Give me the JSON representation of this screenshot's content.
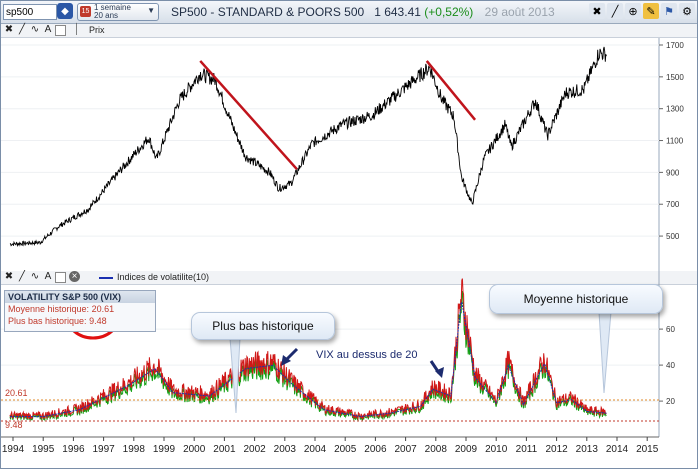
{
  "toolbar": {
    "symbol_value": "sp500",
    "period_line1": "1 semaine",
    "period_line2": "20 ans",
    "period_icon": "15",
    "title": "SP500 - STANDARD & POORS 500",
    "price": "1 643.41",
    "change": "(+0,52%)",
    "date": "29 août 2013",
    "right_icons": [
      "crosshair-icon",
      "line-tool-icon",
      "zoom-icon",
      "pencil-icon",
      "flag-icon",
      "settings-icon"
    ]
  },
  "main_panel": {
    "legend": "Prix",
    "y_ticks": [
      "1700",
      "1500",
      "1300",
      "1100",
      "900",
      "700",
      "500"
    ]
  },
  "vol_panel": {
    "legend": "Indices de volatilite(10)",
    "legend_color": "#1a2fb0",
    "y_ticks": [
      "60",
      "40",
      "20"
    ],
    "info": {
      "title": "VOLATILITY S&P 500 (VIX)",
      "mean_label": "Moyenne historique:",
      "mean_value": "20.61",
      "low_label": "Plus bas historique:",
      "low_value": "9.48"
    },
    "level_mean": "20.61",
    "level_low": "9.48"
  },
  "x_axis": [
    "1994",
    "1995",
    "1996",
    "1997",
    "1998",
    "1999",
    "2000",
    "2001",
    "2002",
    "2003",
    "2004",
    "2005",
    "2006",
    "2007",
    "2008",
    "2009",
    "2010",
    "2011",
    "2012",
    "2013",
    "2014",
    "2015"
  ],
  "annotations": {
    "low_callout": "Plus bas historique",
    "mean_callout": "Moyenne historique",
    "vix_note": "VIX au dessus de 20"
  },
  "colors": {
    "price_line": "#000000",
    "trend_line": "#c0141c",
    "vix_red": "#d01818",
    "vix_green": "#14a014",
    "vix_blue": "#1a2fb0",
    "mean_line": "#e08a2a",
    "low_line": "#c0392b",
    "highlight_circle": "#e01010"
  }
}
